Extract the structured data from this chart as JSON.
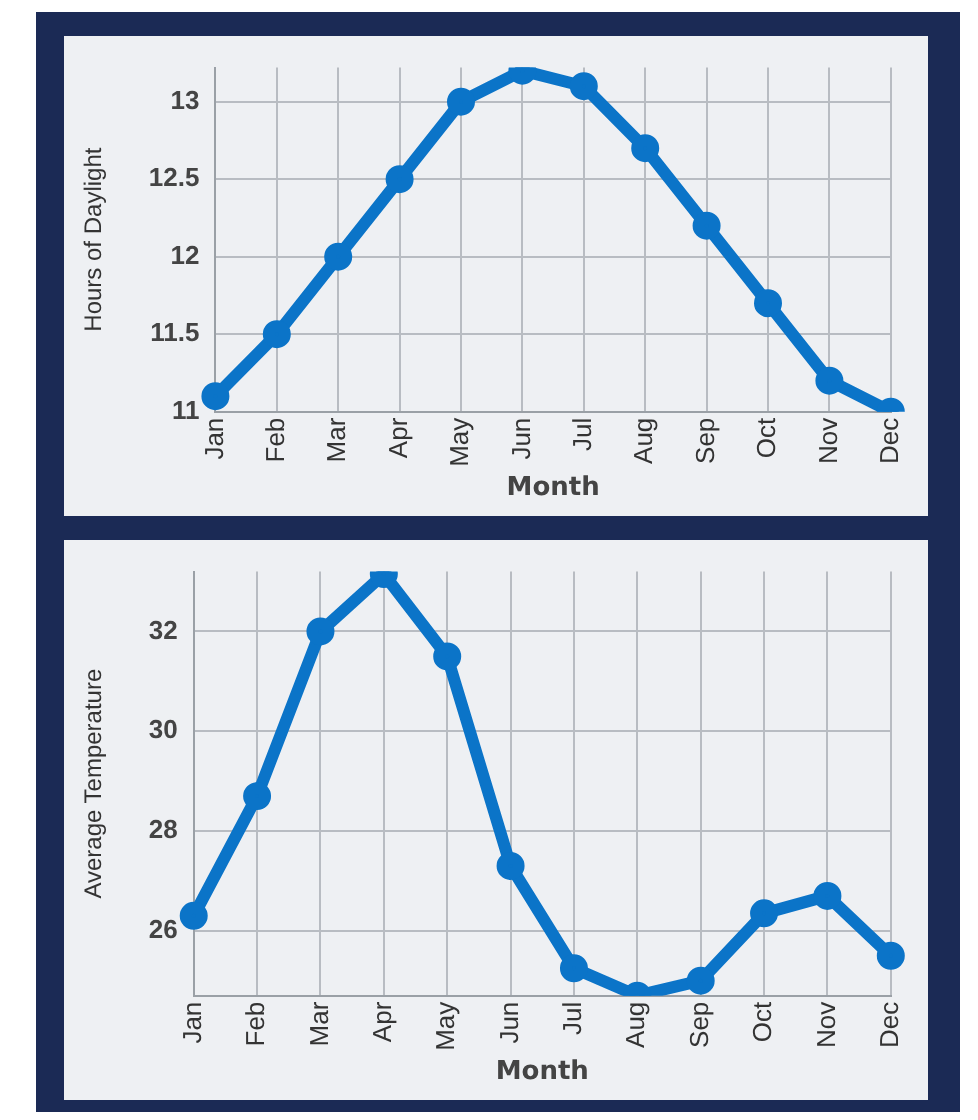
{
  "chart_data": [
    {
      "type": "line",
      "xlabel": "Month",
      "ylabel": "Hours of Daylight",
      "categories": [
        "Jan",
        "Feb",
        "Mar",
        "Apr",
        "May",
        "Jun",
        "Jul",
        "Aug",
        "Sep",
        "Oct",
        "Nov",
        "Dec"
      ],
      "series": [
        {
          "color": "#0b74c8",
          "values": [
            11.1,
            11.5,
            12.0,
            12.5,
            13.0,
            13.2,
            13.1,
            12.7,
            12.2,
            11.7,
            11.2,
            11.0
          ]
        }
      ],
      "ylim": [
        11,
        13.22
      ],
      "yticks": [
        11,
        11.5,
        12,
        12.5,
        13
      ],
      "grid": true,
      "legend": false,
      "marker": "circle",
      "line_style": "solid"
    },
    {
      "type": "line",
      "xlabel": "Month",
      "ylabel": "Average Temperature",
      "categories": [
        "Jan",
        "Feb",
        "Mar",
        "Apr",
        "May",
        "Jun",
        "Jul",
        "Aug",
        "Sep",
        "Oct",
        "Nov",
        "Dec"
      ],
      "series": [
        {
          "color": "#0b74c8",
          "values": [
            26.3,
            28.7,
            32.0,
            33.15,
            31.5,
            27.3,
            25.25,
            24.7,
            25.0,
            26.35,
            26.7,
            25.5
          ]
        }
      ],
      "ylim": [
        24.7,
        33.2
      ],
      "yticks": [
        26,
        28,
        30,
        32
      ],
      "grid": true,
      "legend": false,
      "marker": "circle",
      "line_style": "solid"
    }
  ]
}
